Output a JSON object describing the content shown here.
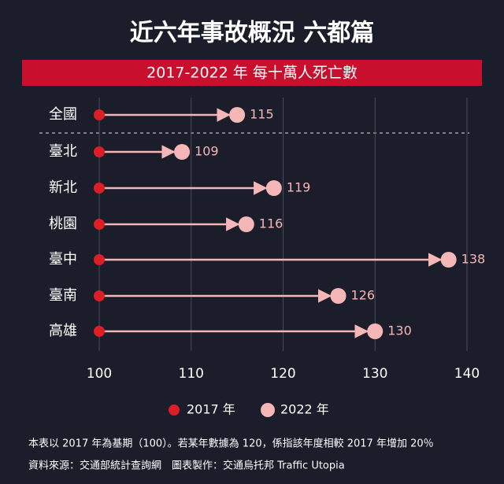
{
  "chart_data": {
    "type": "dumbbell",
    "title": "近六年事故概況 六都篇",
    "subtitle": "2017-2022 年 每十萬人死亡數",
    "categories": [
      "全國",
      "臺北",
      "新北",
      "桃園",
      "臺中",
      "臺南",
      "高雄"
    ],
    "series": [
      {
        "name": "2017 年",
        "color": "#dc1e26",
        "values": [
          100,
          100,
          100,
          100,
          100,
          100,
          100
        ]
      },
      {
        "name": "2022 年",
        "color": "#f4b6b6",
        "values": [
          115,
          109,
          119,
          116,
          138,
          126,
          130
        ]
      }
    ],
    "xlim": [
      100,
      140
    ],
    "xticks": [
      100,
      110,
      120,
      130,
      140
    ],
    "grid": true,
    "legend": "bottom",
    "notes": [
      "本表以 2017 年為基期（100）。若某年數據為 120，係指該年度相較 2017 年增加 20％",
      "資料來源：交通部統計查詢網　圖表製作：交通烏托邦 Traffic Utopia"
    ]
  }
}
